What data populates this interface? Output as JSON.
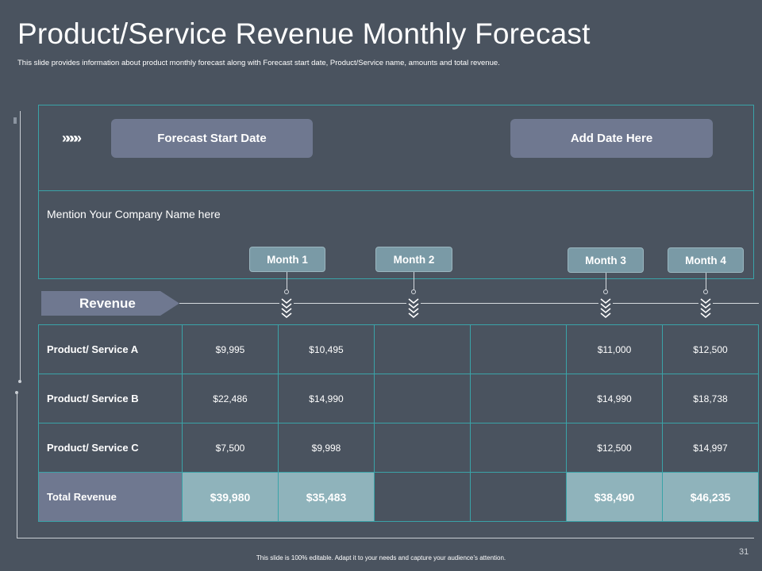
{
  "header": {
    "title": "Product/Service Revenue Monthly Forecast",
    "subtitle": "This slide provides information about product monthly forecast along with Forecast start date, Product/Service name, amounts and total revenue."
  },
  "forecast": {
    "start_label": "Forecast Start Date",
    "date_placeholder": "Add Date Here",
    "arrows": "»»»»"
  },
  "company_placeholder": "Mention Your Company Name here",
  "months": [
    "Month 1",
    "Month 2",
    "Month 3",
    "Month 4"
  ],
  "chevron_glyph": "︾",
  "revenue_label": "Revenue",
  "table": {
    "rows": [
      {
        "label": "Product/ Service A",
        "values": [
          "$9,995",
          "$10,495",
          "",
          "",
          "$11,000",
          "$12,500"
        ]
      },
      {
        "label": "Product/ Service B",
        "values": [
          "$22,486",
          "$14,990",
          "",
          "",
          "$14,990",
          "$18,738"
        ]
      },
      {
        "label": "Product/ Service C",
        "values": [
          "$7,500",
          "$9,998",
          "",
          "",
          "$12,500",
          "$14,997"
        ]
      }
    ],
    "total": {
      "label": "Total Revenue",
      "values": [
        "$39,980",
        "$35,483",
        "",
        "",
        "$38,490",
        "$46,235"
      ]
    }
  },
  "footer": {
    "note": "This slide is 100% editable. Adapt it to your needs and capture your audience’s attention.",
    "page_number": "31"
  },
  "colors": {
    "background": "#4a535f",
    "accent_border": "#3aa3a8",
    "button": "#6f7890",
    "month_tag": "#7a9aa6",
    "total_cell": "#8fb3bb"
  }
}
